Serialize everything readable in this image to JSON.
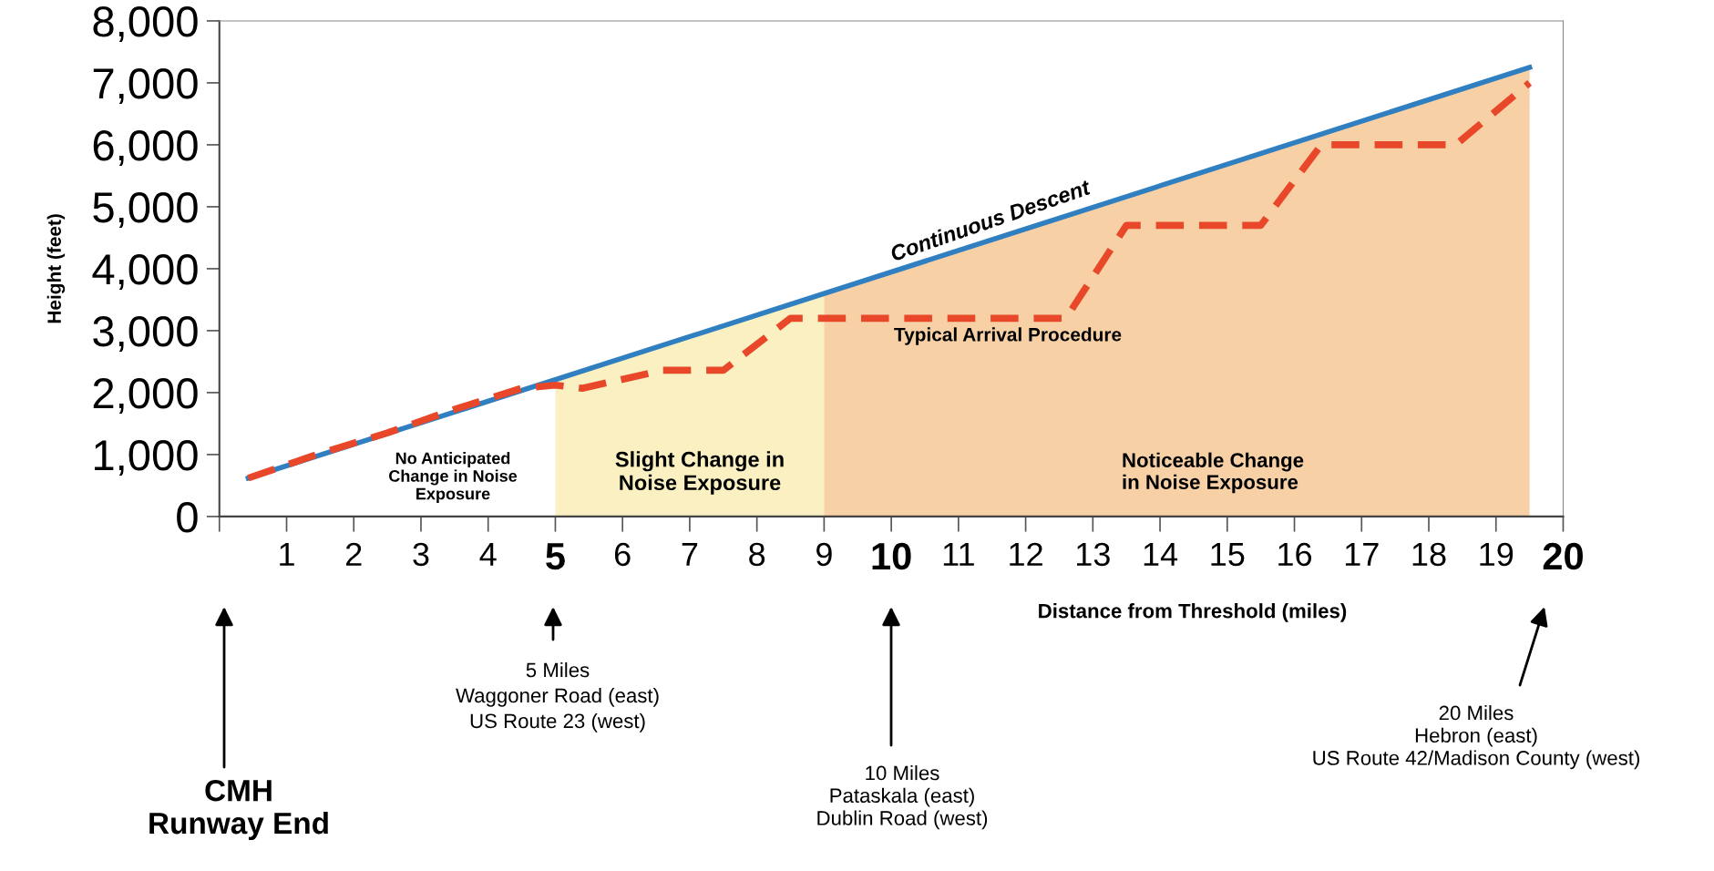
{
  "chart_data": {
    "type": "line",
    "xlabel": "Distance from Threshold (miles)",
    "ylabel": "Height (feet)",
    "xlim": [
      0,
      20
    ],
    "xticks": [
      {
        "value": 0,
        "label": null
      },
      1,
      2,
      3,
      4,
      5,
      6,
      7,
      8,
      9,
      10,
      11,
      12,
      13,
      14,
      15,
      16,
      17,
      18,
      19,
      20
    ],
    "ylim": [
      0,
      8000
    ],
    "yticks": [
      0,
      {
        "value": 1000,
        "label": "1,000"
      },
      {
        "value": 2000,
        "label": "2,000"
      },
      {
        "value": 3000,
        "label": "3,000"
      },
      {
        "value": 4000,
        "label": "4,000"
      },
      {
        "value": 5000,
        "label": "5,000"
      },
      {
        "value": 6000,
        "label": "6,000"
      },
      {
        "value": 7000,
        "label": "7,000"
      },
      {
        "value": 8000,
        "label": "8,000"
      }
    ],
    "series": [
      {
        "type": "area",
        "color": "#faf0c2",
        "x": [
          5,
          9
        ],
        "values": [
          2210,
          3600
        ]
      },
      {
        "type": "area",
        "color": "#f8d0a6",
        "x": [
          9,
          19.5
        ],
        "values": [
          3600,
          7250
        ]
      },
      {
        "color": "#2f7fc1",
        "line_style": "solid",
        "x": [
          0.43,
          19.5
        ],
        "values": [
          620,
          7250
        ]
      },
      {
        "color": "#e8472a",
        "line_style": "dashed",
        "x": [
          0.43,
          1.45,
          2.5,
          3.47,
          4.5,
          5.0,
          5.4,
          6.6,
          7.5,
          8.5,
          12.6,
          13.5,
          15.5,
          16.4,
          18.4,
          19.5
        ],
        "values": [
          620,
          1000,
          1350,
          1720,
          2070,
          2120,
          2070,
          2360,
          2360,
          3200,
          3200,
          4700,
          4700,
          6000,
          6000,
          7000
        ]
      }
    ],
    "annotations": [
      "Continuous Descent",
      "Typical Arrival Procedure",
      "No Anticipated\nChange in Noise\nExposure",
      "Slight Change in\nNoise Exposure",
      "Noticeable Change\nin Noise Exposure",
      "CMH\nRunway End",
      "5 Miles\nWaggoner Road (east)\nUS Route 23 (west)",
      "10 Miles\nPataskala (east)\nDublin Road (west)",
      "20 Miles\nHebron (east)\nUS Route 42/Madison County (west)"
    ]
  }
}
